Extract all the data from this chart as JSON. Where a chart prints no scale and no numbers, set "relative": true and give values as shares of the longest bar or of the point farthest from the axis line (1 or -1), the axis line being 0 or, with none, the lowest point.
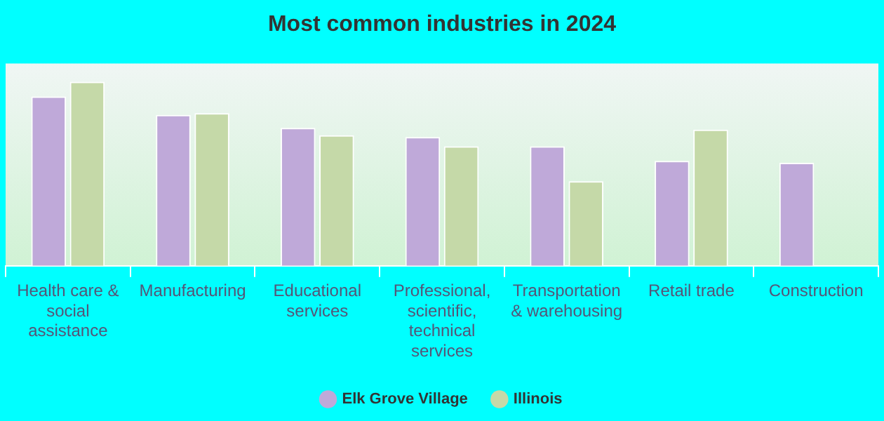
{
  "chart_data": {
    "type": "bar",
    "title": "Most common industries in 2024",
    "relative": true,
    "legend": "bottom",
    "categories": [
      "Health care & social assistance",
      "Manufacturing",
      "Educational services",
      "Professional, scientific, technical services",
      "Transportation & warehousing",
      "Retail trade",
      "Construction"
    ],
    "series": [
      {
        "name": "Elk Grove Village",
        "color": "#bfa9d9",
        "values": [
          0.92,
          0.82,
          0.75,
          0.7,
          0.65,
          0.57,
          0.56
        ]
      },
      {
        "name": "Illinois",
        "color": "#c5d9a8",
        "values": [
          1,
          0.83,
          0.71,
          0.65,
          0.46,
          0.74,
          null
        ]
      }
    ]
  }
}
